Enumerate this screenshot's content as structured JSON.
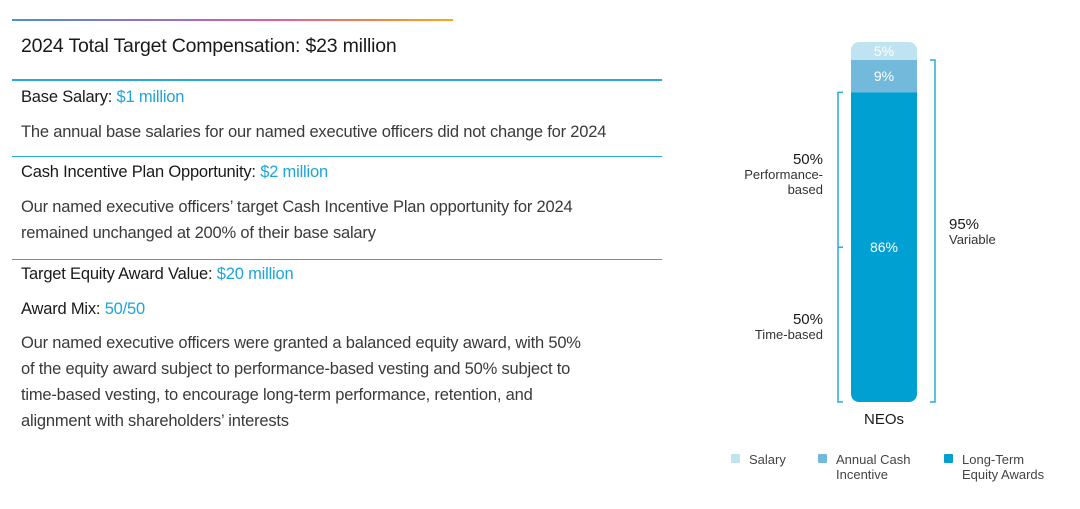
{
  "header": {
    "title": "2024 Total Target Compensation: $23 million"
  },
  "sections": [
    {
      "label": "Base Salary:",
      "value": "$1 million",
      "text": "The annual base salaries for our named executive officers did not change for 2024"
    },
    {
      "label": "Cash Incentive Plan Opportunity:",
      "value": "$2 million",
      "text_line1": "Our named executive officers’ target Cash Incentive Plan opportunity for 2024",
      "text_line2": "remained unchanged at 200% of their base salary"
    },
    {
      "label": "Target Equity Award Value:",
      "value": "$20 million"
    },
    {
      "label": "Award Mix:",
      "value": "50/50",
      "text_line1": "Our named executive officers were granted a balanced equity award, with 50%",
      "text_line2": "of the equity award subject to performance-based vesting and 50% subject to",
      "text_line3": "time-based vesting, to encourage long-term performance, retention, and",
      "text_line4": "alignment with shareholders’ interests"
    }
  ],
  "chart_data": {
    "type": "bar",
    "stacked": true,
    "categories": [
      "NEOs"
    ],
    "series": [
      {
        "name": "Salary",
        "values": [
          5
        ],
        "label": "5%",
        "color": "#bfe3f0"
      },
      {
        "name": "Annual Cash Incentive",
        "values": [
          9
        ],
        "label": "9%",
        "color": "#72b9dc"
      },
      {
        "name": "Long-Term Equity Awards",
        "values": [
          86
        ],
        "label": "86%",
        "color": "#00a0d2"
      }
    ],
    "ylim": [
      0,
      100
    ],
    "annotations": {
      "performance": {
        "pct": "50%",
        "line1": "Performance-",
        "line2": "based"
      },
      "time": {
        "pct": "50%",
        "line1": "Time-based"
      },
      "variable": {
        "pct": "95%",
        "line1": "Variable"
      }
    },
    "legend": [
      {
        "line1": "Salary",
        "line2": ""
      },
      {
        "line1": "Annual Cash",
        "line2": "Incentive"
      },
      {
        "line1": "Long-Term",
        "line2": "Equity Awards"
      }
    ],
    "legend_position": "bottom",
    "bracket_color": "#29a9dc"
  }
}
